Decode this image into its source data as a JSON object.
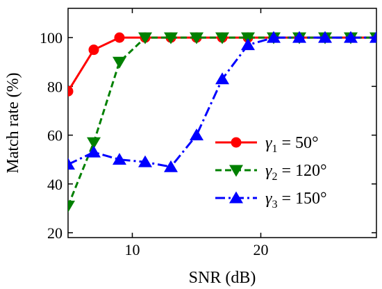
{
  "chart_data": {
    "type": "line",
    "xlabel": "SNR (dB)",
    "ylabel": "Match rate (%)",
    "xlim": [
      5,
      29
    ],
    "ylim": [
      18,
      112
    ],
    "xticks": [
      10,
      20
    ],
    "yticks": [
      20,
      40,
      60,
      80,
      100
    ],
    "xtick_labels": [
      "10",
      "20"
    ],
    "ytick_labels": [
      "20",
      "40",
      "60",
      "80",
      "100"
    ],
    "grid": false,
    "legend_position": "center-right",
    "x": [
      5,
      7,
      9,
      11,
      13,
      15,
      17,
      19,
      21,
      23,
      25,
      27,
      29
    ],
    "series": [
      {
        "name_symbol": "γ",
        "name_subscript": "1",
        "name_rest": " = 50°",
        "color": "#ff0000",
        "marker": "circle",
        "line_style": "solid",
        "values": [
          78,
          95,
          100,
          100,
          100,
          100,
          100,
          100,
          100,
          100,
          100,
          100,
          100
        ]
      },
      {
        "name_symbol": "γ",
        "name_subscript": "2",
        "name_rest": " = 120°",
        "color": "#008000",
        "marker": "triangle-down",
        "line_style": "dashed",
        "values": [
          31,
          57,
          90,
          100,
          100,
          100,
          100,
          100,
          100,
          100,
          100,
          100,
          100
        ]
      },
      {
        "name_symbol": "γ",
        "name_subscript": "3",
        "name_rest": " = 150°",
        "color": "#0000ff",
        "marker": "triangle-up",
        "line_style": "dashdot",
        "values": [
          48,
          53,
          50,
          49,
          47,
          60,
          83,
          97,
          100,
          100,
          100,
          100,
          100
        ]
      }
    ]
  }
}
